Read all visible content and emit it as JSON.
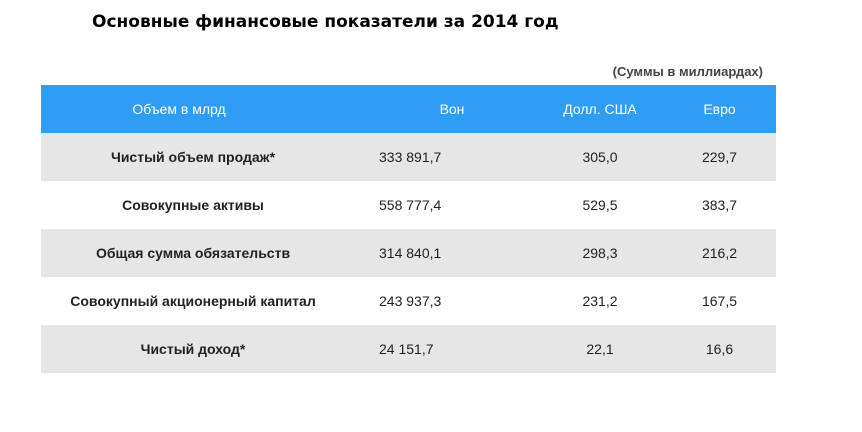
{
  "title": "Основные финансовые показатели за 2014 год",
  "units_note": "(Суммы в миллиардах)",
  "colors": {
    "header_bg": "#2d9ef4",
    "header_text": "#ffffff",
    "stripe_bg": "#e6e6e6"
  },
  "table": {
    "headers": [
      "Объем в млрд",
      "Вон",
      "Долл. США",
      "Евро"
    ],
    "rows": [
      {
        "label": "Чистый объем продаж*",
        "krw": "333 891,7",
        "usd": "305,0",
        "eur": "229,7"
      },
      {
        "label": "Совокупные активы",
        "krw": "558 777,4",
        "usd": "529,5",
        "eur": "383,7"
      },
      {
        "label": "Общая сумма обязательств",
        "krw": "314 840,1",
        "usd": "298,3",
        "eur": "216,2"
      },
      {
        "label": "Совокупный акционерный капитал",
        "krw": "243 937,3",
        "usd": "231,2",
        "eur": "167,5"
      },
      {
        "label": "Чистый доход*",
        "krw": "24 151,7",
        "usd": "22,1",
        "eur": "16,6"
      }
    ]
  }
}
